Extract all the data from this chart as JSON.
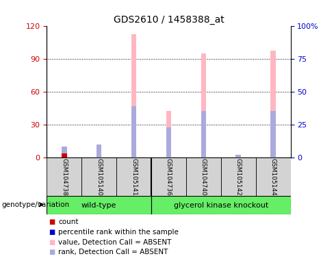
{
  "title": "GDS2610 / 1458388_at",
  "samples": [
    "GSM104738",
    "GSM105140",
    "GSM105141",
    "GSM104736",
    "GSM104740",
    "GSM105142",
    "GSM105144"
  ],
  "pink_bars": [
    5.0,
    12.0,
    113.0,
    43.0,
    95.0,
    0.0,
    98.0
  ],
  "blue_bars": [
    10.0,
    12.0,
    47.0,
    28.0,
    43.0,
    3.0,
    43.0
  ],
  "red_bars": [
    4.0,
    0.0,
    0.0,
    0.0,
    0.0,
    0.0,
    0.0
  ],
  "dark_blue_bars": [
    0.0,
    0.0,
    0.0,
    0.0,
    0.0,
    0.0,
    0.0
  ],
  "ylim_left": [
    0,
    120
  ],
  "ylim_right": [
    0,
    100
  ],
  "yticks_left": [
    0,
    30,
    60,
    90,
    120
  ],
  "yticks_right": [
    0,
    25,
    50,
    75,
    100
  ],
  "ytick_labels_right": [
    "0",
    "25",
    "50",
    "75",
    "100%"
  ],
  "ylabel_left_color": "#cc0000",
  "ylabel_right_color": "#0000cc",
  "bar_width": 0.15,
  "plot_bg": "#ffffff",
  "label_bg": "#d3d3d3",
  "group_color": "#66ee66",
  "legend_items": [
    {
      "label": "count",
      "color": "#cc0000"
    },
    {
      "label": "percentile rank within the sample",
      "color": "#0000cc"
    },
    {
      "label": "value, Detection Call = ABSENT",
      "color": "#ffb6c1"
    },
    {
      "label": "rank, Detection Call = ABSENT",
      "color": "#aaaadd"
    }
  ],
  "genotype_label": "genotype/variation",
  "wt_count": 3,
  "ko_count": 4
}
